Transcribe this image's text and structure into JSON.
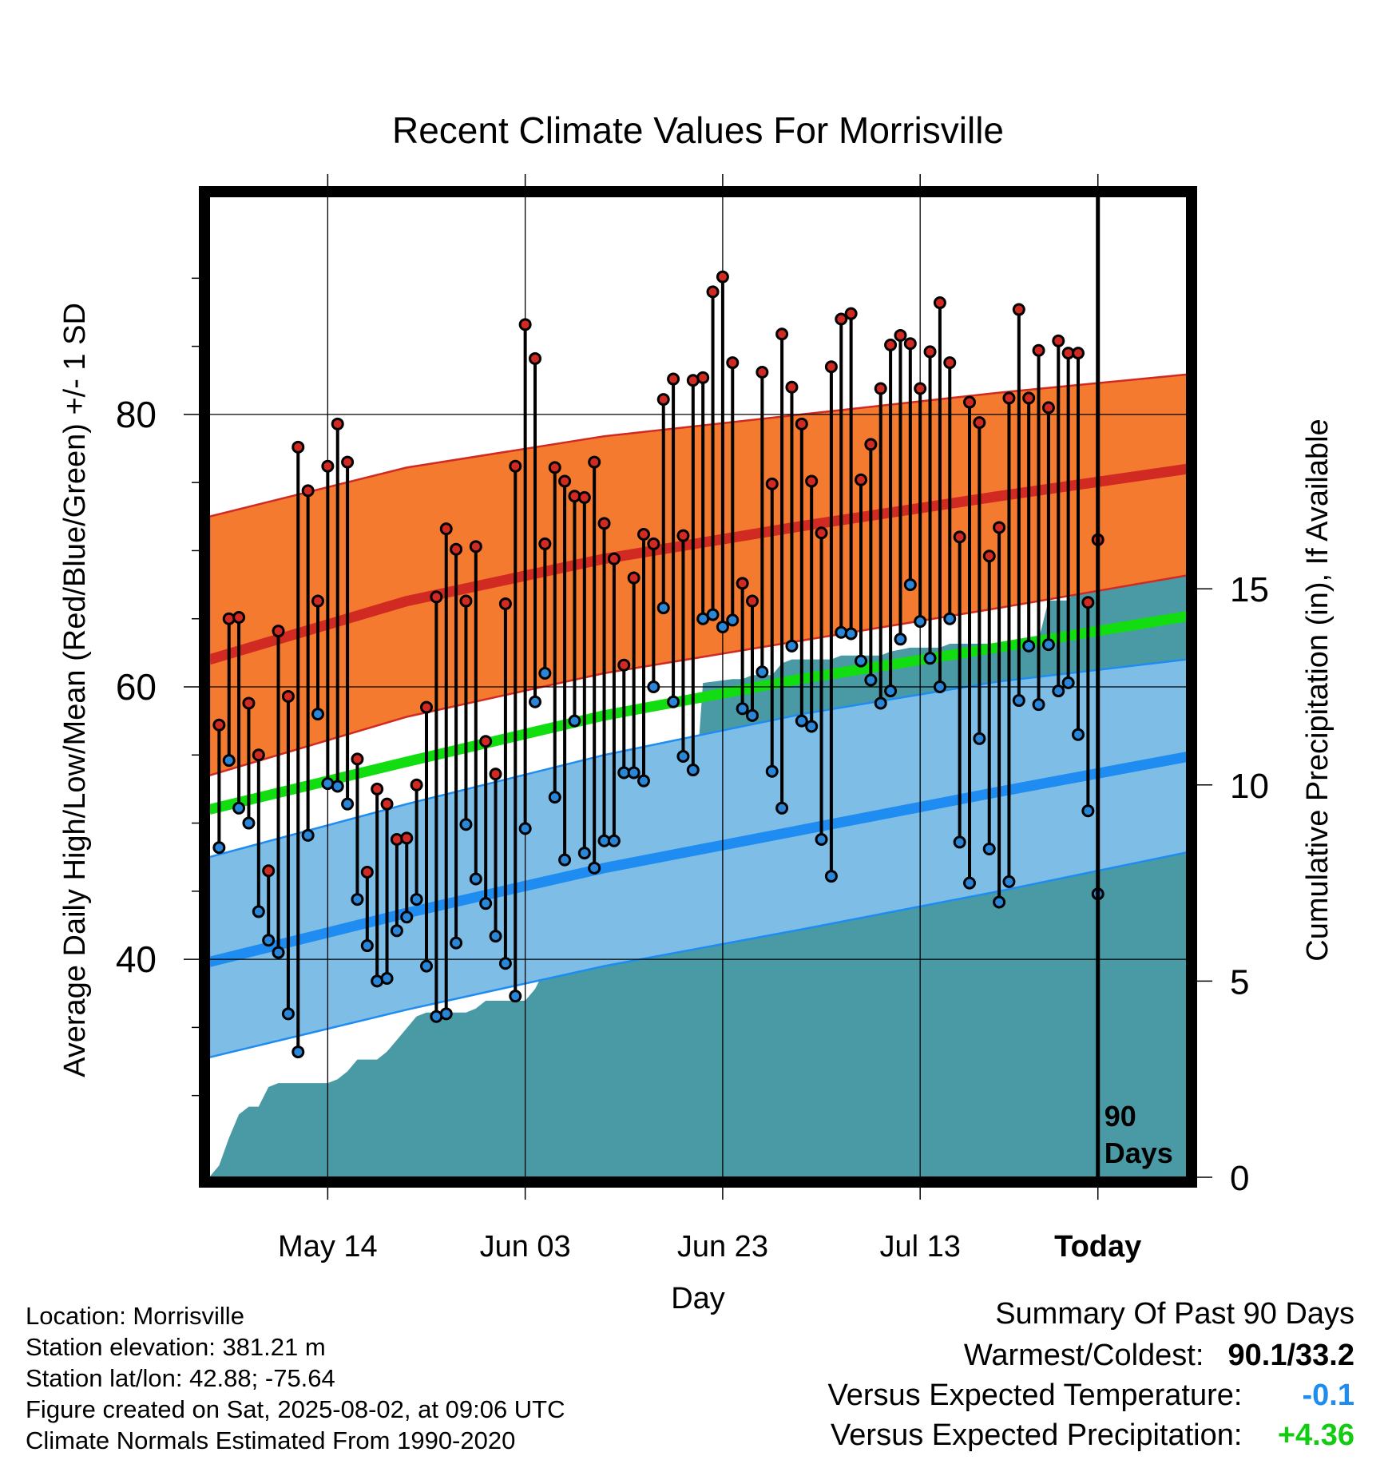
{
  "chart_data": {
    "type": "line",
    "title": "Recent Climate Values For Morrisville",
    "xlabel": "Day",
    "ylabel": "Average Daily High/Low/Mean (Red/Blue/Green) +/- 1 SD",
    "y2label": "Cumulative Precipitation (in), If Available",
    "x_tick_labels": [
      "May 14",
      "Jun 03",
      "Jun 23",
      "Jul 13",
      "Today"
    ],
    "y_ticks": [
      "40",
      "60",
      "80"
    ],
    "y2_ticks": [
      "0",
      "5",
      "10",
      "15"
    ],
    "x_range_days": [
      -90,
      9
    ],
    "y_range": [
      24,
      96
    ],
    "y2_range": [
      0,
      25
    ],
    "marker_label": "90\nDays",
    "colors": {
      "high_band": "#f47a30",
      "high_mean": "#d12a22",
      "low_band": "#7dbde6",
      "low_mean": "#1e8cf0",
      "mean_line": "#11dd11",
      "precip": "#4a9aa5",
      "high_dot": "#d12a22",
      "low_dot": "#2a86d8"
    },
    "normals": {
      "days": [
        -90,
        -70,
        -50,
        -30,
        -10,
        10,
        30,
        50,
        70,
        80,
        90,
        99
      ],
      "high_mean": [
        62,
        66.3,
        69.4,
        71.8,
        74.0,
        76.1,
        77.9,
        79.0,
        79.1,
        78.8,
        78.4,
        77.8
      ],
      "high_upper": [
        72.5,
        76.1,
        78.4,
        80.0,
        81.6,
        83.0,
        84.3,
        85.0,
        85.0,
        84.6,
        84.2,
        83.5
      ],
      "high_lower": [
        53.5,
        57.8,
        61.0,
        63.4,
        65.8,
        68.3,
        70.7,
        72.5,
        73.3,
        73.2,
        72.9,
        72.4
      ],
      "mean_line": [
        51,
        54.5,
        57.9,
        60.6,
        62.9,
        65.3,
        67.4,
        68.4,
        68.6,
        68.4,
        68.1,
        67.5
      ],
      "low_mean": [
        39.8,
        43.4,
        46.7,
        49.5,
        52.3,
        55.0,
        57.0,
        57.8,
        57.9,
        57.8,
        57.5,
        57.0
      ],
      "low_upper": [
        47.5,
        51.4,
        55.0,
        58.0,
        60.4,
        62.1,
        63.4,
        64.0,
        64.1,
        63.9,
        63.6,
        63.1
      ],
      "low_lower": [
        32.8,
        36.3,
        39.5,
        42.2,
        45.0,
        48.0,
        50.6,
        51.8,
        52.0,
        51.9,
        51.7,
        51.2
      ]
    },
    "days": [
      {
        "day": -89,
        "high": 57.2,
        "low": 48.2
      },
      {
        "day": -88,
        "high": 65.0,
        "low": 54.6
      },
      {
        "day": -87,
        "high": 65.1,
        "low": 51.1
      },
      {
        "day": -86,
        "high": 58.8,
        "low": 50.0
      },
      {
        "day": -85,
        "high": 55.0,
        "low": 43.5
      },
      {
        "day": -84,
        "high": 46.5,
        "low": 41.4
      },
      {
        "day": -83,
        "high": 64.1,
        "low": 40.5
      },
      {
        "day": -82,
        "high": 59.3,
        "low": 36.0
      },
      {
        "day": -81,
        "high": 77.6,
        "low": 33.2
      },
      {
        "day": -80,
        "high": 74.4,
        "low": 49.1
      },
      {
        "day": -79,
        "high": 66.3,
        "low": 58.0
      },
      {
        "day": -78,
        "high": 76.2,
        "low": 52.9
      },
      {
        "day": -77,
        "high": 79.3,
        "low": 52.7
      },
      {
        "day": -76,
        "high": 76.5,
        "low": 51.4
      },
      {
        "day": -75,
        "high": 54.7,
        "low": 44.4
      },
      {
        "day": -74,
        "high": 46.4,
        "low": 41.0
      },
      {
        "day": -73,
        "high": 52.5,
        "low": 38.4
      },
      {
        "day": -72,
        "high": 51.4,
        "low": 38.6
      },
      {
        "day": -71,
        "high": 48.8,
        "low": 42.1
      },
      {
        "day": -70,
        "high": 48.9,
        "low": 43.1
      },
      {
        "day": -69,
        "high": 52.8,
        "low": 44.4
      },
      {
        "day": -68,
        "high": 58.5,
        "low": 39.5
      },
      {
        "day": -67,
        "high": 66.6,
        "low": 35.8
      },
      {
        "day": -66,
        "high": 71.6,
        "low": 36.0
      },
      {
        "day": -65,
        "high": 70.1,
        "low": 41.2
      },
      {
        "day": -64,
        "high": 66.3,
        "low": 49.9
      },
      {
        "day": -63,
        "high": 70.3,
        "low": 45.9
      },
      {
        "day": -62,
        "high": 56.0,
        "low": 44.1
      },
      {
        "day": -61,
        "high": 53.6,
        "low": 41.7
      },
      {
        "day": -60,
        "high": 66.1,
        "low": 39.7
      },
      {
        "day": -59,
        "high": 76.2,
        "low": 37.3
      },
      {
        "day": -58,
        "high": 86.6,
        "low": 49.6
      },
      {
        "day": -57,
        "high": 84.1,
        "low": 58.9
      },
      {
        "day": -56,
        "high": 70.5,
        "low": 61.0
      },
      {
        "day": -55,
        "high": 76.1,
        "low": 51.9
      },
      {
        "day": -54,
        "high": 75.1,
        "low": 47.3
      },
      {
        "day": -53,
        "high": 74.0,
        "low": 57.5
      },
      {
        "day": -52,
        "high": 73.9,
        "low": 47.8
      },
      {
        "day": -51,
        "high": 76.5,
        "low": 46.7
      },
      {
        "day": -50,
        "high": 72.0,
        "low": 48.7
      },
      {
        "day": -49,
        "high": 69.4,
        "low": 48.7
      },
      {
        "day": -48,
        "high": 61.6,
        "low": 53.7
      },
      {
        "day": -47,
        "high": 68.0,
        "low": 53.7
      },
      {
        "day": -46,
        "high": 71.2,
        "low": 53.1
      },
      {
        "day": -45,
        "high": 70.5,
        "low": 60.0
      },
      {
        "day": -44,
        "high": 81.1,
        "low": 65.8
      },
      {
        "day": -43,
        "high": 82.6,
        "low": 58.9
      },
      {
        "day": -42,
        "high": 71.1,
        "low": 54.9
      },
      {
        "day": -41,
        "high": 82.5,
        "low": 53.9
      },
      {
        "day": -40,
        "high": 82.7,
        "low": 65.0
      },
      {
        "day": -39,
        "high": 89.0,
        "low": 65.3
      },
      {
        "day": -38,
        "high": 90.1,
        "low": 64.4
      },
      {
        "day": -37,
        "high": 83.8,
        "low": 64.9
      },
      {
        "day": -36,
        "high": 67.6,
        "low": 58.4
      },
      {
        "day": -35,
        "high": 66.3,
        "low": 57.9
      },
      {
        "day": -34,
        "high": 83.1,
        "low": 61.1
      },
      {
        "day": -33,
        "high": 74.9,
        "low": 53.8
      },
      {
        "day": -32,
        "high": 85.9,
        "low": 51.1
      },
      {
        "day": -31,
        "high": 82.0,
        "low": 63.0
      },
      {
        "day": -30,
        "high": 79.3,
        "low": 57.5
      },
      {
        "day": -29,
        "high": 75.1,
        "low": 57.1
      },
      {
        "day": -28,
        "high": 71.3,
        "low": 48.8
      },
      {
        "day": -27,
        "high": 83.5,
        "low": 46.1
      },
      {
        "day": -26,
        "high": 87.0,
        "low": 64.0
      },
      {
        "day": -25,
        "high": 87.4,
        "low": 63.9
      },
      {
        "day": -24,
        "high": 75.2,
        "low": 61.9
      },
      {
        "day": -23,
        "high": 77.8,
        "low": 60.5
      },
      {
        "day": -22,
        "high": 81.9,
        "low": 58.8
      },
      {
        "day": -21,
        "high": 85.1,
        "low": 59.7
      },
      {
        "day": -20,
        "high": 85.8,
        "low": 63.5
      },
      {
        "day": -19,
        "high": 85.2,
        "low": 67.5
      },
      {
        "day": -18,
        "high": 81.9,
        "low": 64.8
      },
      {
        "day": -17,
        "high": 84.6,
        "low": 62.1
      },
      {
        "day": -16,
        "high": 88.2,
        "low": 60.0
      },
      {
        "day": -15,
        "high": 83.8,
        "low": 65.0
      },
      {
        "day": -14,
        "high": 71.0,
        "low": 48.6
      },
      {
        "day": -13,
        "high": 80.9,
        "low": 45.6
      },
      {
        "day": -12,
        "high": 79.4,
        "low": 56.2
      },
      {
        "day": -11,
        "high": 69.6,
        "low": 48.1
      },
      {
        "day": -10,
        "high": 71.7,
        "low": 44.2
      },
      {
        "day": -9,
        "high": 81.2,
        "low": 45.7
      },
      {
        "day": -8,
        "high": 87.7,
        "low": 59.0
      },
      {
        "day": -7,
        "high": 81.2,
        "low": 63.0
      },
      {
        "day": -6,
        "high": 84.7,
        "low": 58.7
      },
      {
        "day": -5,
        "high": 80.5,
        "low": 63.1
      },
      {
        "day": -4,
        "high": 85.4,
        "low": 59.7
      },
      {
        "day": -3,
        "high": 84.5,
        "low": 60.3
      },
      {
        "day": -2,
        "high": 84.5,
        "low": 56.5
      },
      {
        "day": -1,
        "high": 66.2,
        "low": 50.9
      },
      {
        "day": 0,
        "high": 70.8,
        "low": 44.8
      }
    ],
    "precip_cumulative": [
      [
        -90,
        0
      ],
      [
        -89,
        0.3
      ],
      [
        -88,
        1.0
      ],
      [
        -87,
        1.6
      ],
      [
        -86,
        1.8
      ],
      [
        -85,
        1.8
      ],
      [
        -84,
        2.3
      ],
      [
        -83,
        2.4
      ],
      [
        -78,
        2.4
      ],
      [
        -77,
        2.5
      ],
      [
        -76,
        2.7
      ],
      [
        -75,
        3.0
      ],
      [
        -73,
        3.0
      ],
      [
        -72,
        3.2
      ],
      [
        -71,
        3.5
      ],
      [
        -70,
        3.8
      ],
      [
        -69,
        4.1
      ],
      [
        -68,
        4.2
      ],
      [
        -64,
        4.2
      ],
      [
        -63,
        4.3
      ],
      [
        -62,
        4.5
      ],
      [
        -58,
        4.5
      ],
      [
        -57,
        4.8
      ],
      [
        -56,
        5.3
      ],
      [
        -55,
        7.3
      ],
      [
        -54,
        7.5
      ],
      [
        -53,
        8.0
      ],
      [
        -52,
        8.3
      ],
      [
        -50,
        8.3
      ],
      [
        -49,
        8.5
      ],
      [
        -48,
        8.6
      ],
      [
        -45,
        8.6
      ],
      [
        -44,
        8.8
      ],
      [
        -43,
        8.9
      ],
      [
        -42,
        8.9
      ],
      [
        -41,
        9.0
      ],
      [
        -40,
        12.6
      ],
      [
        -37,
        12.7
      ],
      [
        -36,
        12.7
      ],
      [
        -35,
        12.8
      ],
      [
        -33,
        12.8
      ],
      [
        -32,
        13.1
      ],
      [
        -31,
        13.2
      ],
      [
        -27,
        13.2
      ],
      [
        -26,
        13.3
      ],
      [
        -22,
        13.3
      ],
      [
        -21,
        13.4
      ],
      [
        -19,
        13.5
      ],
      [
        -16,
        13.5
      ],
      [
        -15,
        13.6
      ],
      [
        -8,
        13.6
      ],
      [
        -7,
        13.7
      ],
      [
        -6,
        13.7
      ],
      [
        -5,
        14.7
      ],
      [
        -3,
        14.7
      ],
      [
        -2,
        15.1
      ],
      [
        -1,
        15.5
      ],
      [
        9,
        15.5
      ]
    ]
  },
  "info": {
    "location": "Location: Morrisville",
    "elevation": "Station elevation: 381.21 m",
    "latlon": "Station lat/lon: 42.88; -75.64",
    "created": "Figure created on Sat, 2025-08-02, at 09:06 UTC",
    "normals": "Climate Normals Estimated From 1990-2020"
  },
  "summary": {
    "title": "Summary Of Past 90 Days",
    "warm_cold_label": "Warmest/Coldest:",
    "warm_cold_value": "90.1/33.2",
    "temp_label": "Versus Expected Temperature:",
    "temp_value": "-0.1",
    "temp_color": "#1e8cf0",
    "precip_label": "Versus Expected Precipitation:",
    "precip_value": "+4.36",
    "precip_color": "#11cc11"
  }
}
